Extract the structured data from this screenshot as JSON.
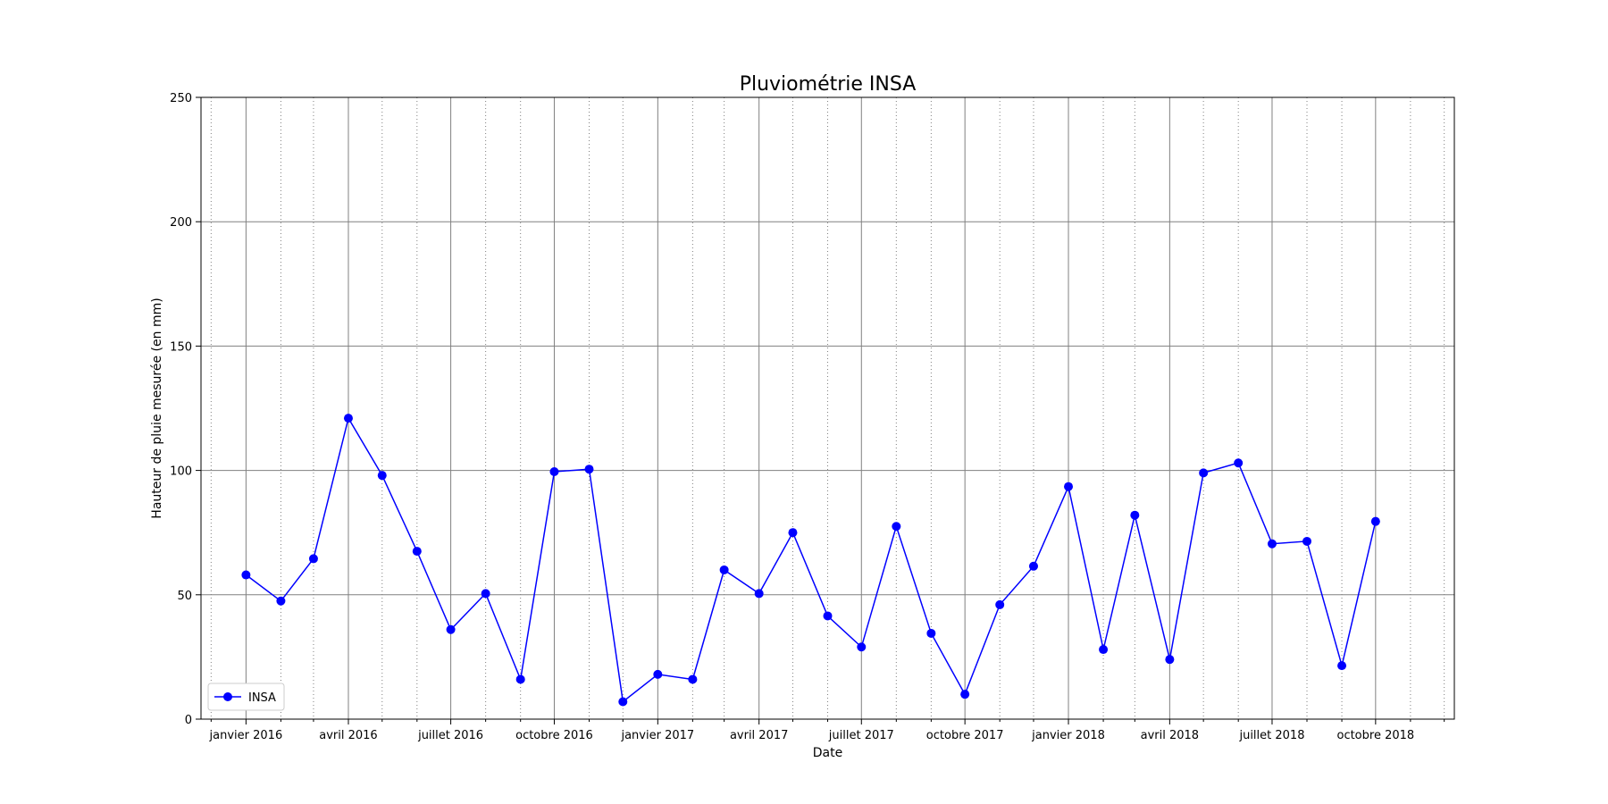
{
  "chart_data": {
    "type": "line",
    "title": "Pluviométrie INSA",
    "xlabel": "Date",
    "ylabel": "Hauteur de pluie mesurée (en mm)",
    "xlim": [
      "2015-11-22",
      "2018-12-10"
    ],
    "ylim": [
      0,
      250
    ],
    "y_ticks": [
      0,
      50,
      100,
      150,
      200,
      250
    ],
    "x_major_ticks": [
      {
        "date": "2016-01-01",
        "label": "janvier 2016"
      },
      {
        "date": "2016-04-01",
        "label": "avril 2016"
      },
      {
        "date": "2016-07-01",
        "label": "juillet 2016"
      },
      {
        "date": "2016-10-01",
        "label": "octobre 2016"
      },
      {
        "date": "2017-01-01",
        "label": "janvier 2017"
      },
      {
        "date": "2017-04-01",
        "label": "avril 2017"
      },
      {
        "date": "2017-07-01",
        "label": "juillet 2017"
      },
      {
        "date": "2017-10-01",
        "label": "octobre 2017"
      },
      {
        "date": "2018-01-01",
        "label": "janvier 2018"
      },
      {
        "date": "2018-04-01",
        "label": "avril 2018"
      },
      {
        "date": "2018-07-01",
        "label": "juillet 2018"
      },
      {
        "date": "2018-10-01",
        "label": "octobre 2018"
      }
    ],
    "x_minor_ticks": [
      "2015-12-01",
      "2016-02-01",
      "2016-03-01",
      "2016-05-01",
      "2016-06-01",
      "2016-08-01",
      "2016-09-01",
      "2016-11-01",
      "2016-12-01",
      "2017-02-01",
      "2017-03-01",
      "2017-05-01",
      "2017-06-01",
      "2017-08-01",
      "2017-09-01",
      "2017-11-01",
      "2017-12-01",
      "2018-02-01",
      "2018-03-01",
      "2018-05-01",
      "2018-06-01",
      "2018-08-01",
      "2018-09-01",
      "2018-11-01",
      "2018-12-01"
    ],
    "grid": {
      "major": "solid gray",
      "minor": "dotted gray"
    },
    "legend_position": "bottom-left",
    "series": [
      {
        "name": "INSA",
        "color": "#0000ff",
        "marker": "circle",
        "points": [
          {
            "x": "2016-01-01",
            "y": 58
          },
          {
            "x": "2016-02-01",
            "y": 47.5
          },
          {
            "x": "2016-03-01",
            "y": 64.5
          },
          {
            "x": "2016-04-01",
            "y": 121
          },
          {
            "x": "2016-05-01",
            "y": 98
          },
          {
            "x": "2016-06-01",
            "y": 67.5
          },
          {
            "x": "2016-07-01",
            "y": 36
          },
          {
            "x": "2016-08-01",
            "y": 50.5
          },
          {
            "x": "2016-09-01",
            "y": 16
          },
          {
            "x": "2016-10-01",
            "y": 99.5
          },
          {
            "x": "2016-11-01",
            "y": 100.5
          },
          {
            "x": "2016-12-01",
            "y": 7
          },
          {
            "x": "2017-01-01",
            "y": 18
          },
          {
            "x": "2017-02-01",
            "y": 16
          },
          {
            "x": "2017-03-01",
            "y": 60
          },
          {
            "x": "2017-04-01",
            "y": 50.5
          },
          {
            "x": "2017-05-01",
            "y": 75
          },
          {
            "x": "2017-06-01",
            "y": 41.5
          },
          {
            "x": "2017-07-01",
            "y": 29
          },
          {
            "x": "2017-08-01",
            "y": 77.5
          },
          {
            "x": "2017-09-01",
            "y": 34.5
          },
          {
            "x": "2017-10-01",
            "y": 10
          },
          {
            "x": "2017-11-01",
            "y": 46
          },
          {
            "x": "2017-12-01",
            "y": 61.5
          },
          {
            "x": "2018-01-01",
            "y": 93.5
          },
          {
            "x": "2018-02-01",
            "y": 28
          },
          {
            "x": "2018-03-01",
            "y": 82
          },
          {
            "x": "2018-04-01",
            "y": 24
          },
          {
            "x": "2018-05-01",
            "y": 99
          },
          {
            "x": "2018-06-01",
            "y": 103
          },
          {
            "x": "2018-07-01",
            "y": 70.5
          },
          {
            "x": "2018-08-01",
            "y": 71.5
          },
          {
            "x": "2018-09-01",
            "y": 21.5
          },
          {
            "x": "2018-10-01",
            "y": 79.5
          }
        ]
      }
    ]
  }
}
